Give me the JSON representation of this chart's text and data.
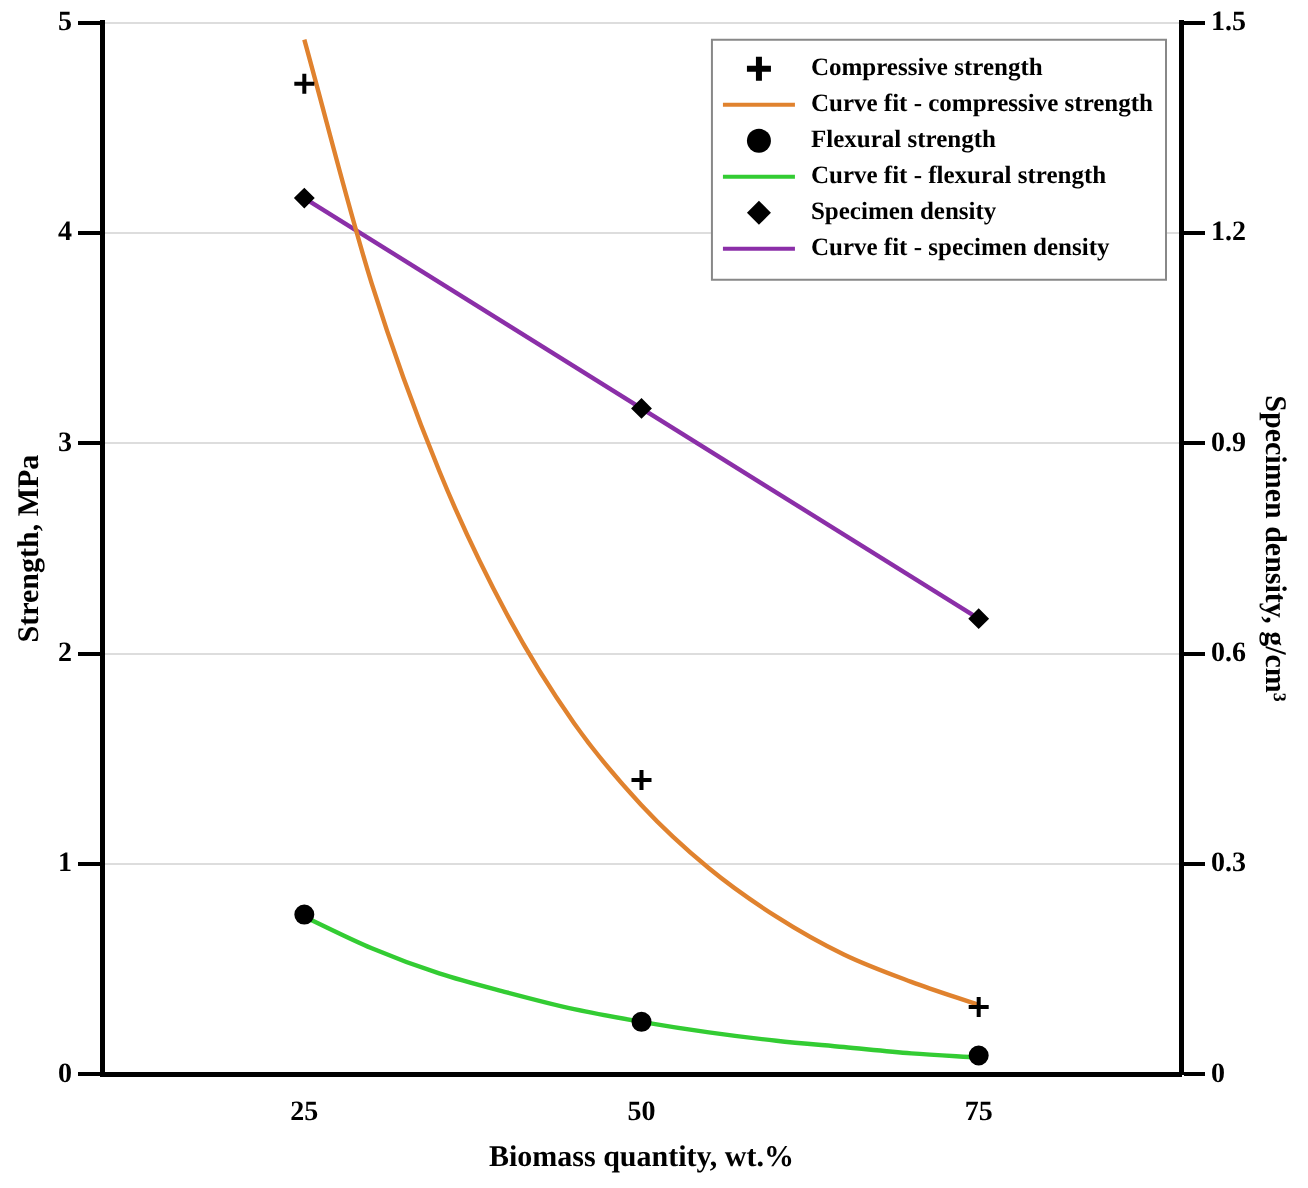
{
  "chart_data": {
    "type": "scatter",
    "xlabel": "Biomass quantity, wt.%",
    "ylabel": "Strength, MPa",
    "y2label": "Specimen density, g/cm³",
    "xlim": [
      10,
      90
    ],
    "xticks": [
      25,
      50,
      75
    ],
    "ylim": [
      0,
      5
    ],
    "yticks": [
      0,
      1,
      2,
      3,
      4,
      5
    ],
    "y2lim": [
      0,
      1.5
    ],
    "y2ticks": [
      0,
      0.3,
      0.6,
      0.9,
      1.2,
      1.5
    ],
    "grid": "y",
    "legend": "top right",
    "series": [
      {
        "name": "Compressive strength",
        "type": "scatter",
        "marker": "cross",
        "color": "#000000",
        "x": [
          25,
          50,
          75
        ],
        "values": [
          4.71,
          1.4,
          0.32
        ]
      },
      {
        "name": "Curve fit - compressive strength",
        "type": "line",
        "marker": "none",
        "color": "#e0822e",
        "x": [
          25,
          30,
          35,
          40,
          45,
          50,
          55,
          60,
          65,
          70,
          75
        ],
        "values": [
          4.92,
          3.76,
          2.87,
          2.19,
          1.67,
          1.28,
          0.98,
          0.75,
          0.57,
          0.44,
          0.33
        ]
      },
      {
        "name": "Flexural strength",
        "type": "scatter",
        "marker": "circle",
        "color": "#000000",
        "x": [
          25,
          50,
          75
        ],
        "values": [
          0.76,
          0.25,
          0.09
        ]
      },
      {
        "name": "Curve fit - flexural strength",
        "type": "line",
        "marker": "none",
        "color": "#33cc33",
        "x": [
          25,
          30,
          35,
          40,
          45,
          50,
          55,
          60,
          65,
          70,
          75
        ],
        "values": [
          0.75,
          0.6,
          0.48,
          0.39,
          0.31,
          0.25,
          0.2,
          0.16,
          0.13,
          0.1,
          0.08
        ]
      },
      {
        "name": "Specimen density",
        "type": "scatter",
        "marker": "diamond",
        "axis": "y2",
        "color": "#000000",
        "x": [
          25,
          50,
          75
        ],
        "values": [
          1.25,
          0.95,
          0.65
        ]
      },
      {
        "name": "Curve fit - specimen density",
        "type": "line",
        "marker": "none",
        "axis": "y2",
        "color": "#8b2fa8",
        "x": [
          25,
          75
        ],
        "values": [
          1.25,
          0.65
        ]
      }
    ]
  }
}
